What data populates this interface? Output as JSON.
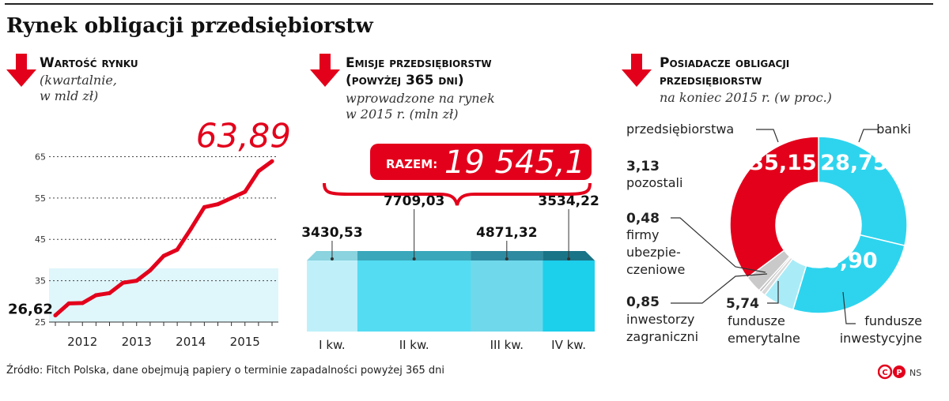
{
  "title": "Rynek obligacji przedsiębiorstw",
  "panels": {
    "market": {
      "title": "Wartość rynku",
      "subtitle_line1": "(kwartalnie,",
      "subtitle_line2": "w mld zł)",
      "start_label": "26,62",
      "end_label": "63,89"
    },
    "issues": {
      "title_line1": "Emisje przedsiębiorstw",
      "title_line2": "(powyżej 365 dni)",
      "subtitle_line1": "wprowadzone na rynek",
      "subtitle_line2": "w 2015 r. (mln zł)",
      "total_label": "RAZEM:",
      "total_value": "19 545,1"
    },
    "holders": {
      "title_line1": "Posiadacze obligacji",
      "title_line2": "przedsiębiorstw",
      "subtitle": "na koniec 2015 r. (w proc.)"
    }
  },
  "source": "Źródło: Fitch Polska, dane obejmują papiery o terminie zapadalności powyżej 365 dni",
  "brand": "NS",
  "colors": {
    "red": "#e3001b",
    "cyan": "#2ed4ee",
    "light_cyan": "#a9ecf7",
    "pale_cyan": "#dff6fb",
    "gray": "#c9c9c9",
    "dark": "#111111"
  },
  "chart_data": [
    {
      "type": "line",
      "title": "Wartość rynku",
      "x_tick_labels": [
        "2012",
        "2013",
        "2014",
        "2015"
      ],
      "y_ticks": [
        25,
        35,
        45,
        55,
        65
      ],
      "ylim": [
        25,
        67
      ],
      "grid": true,
      "series": [
        {
          "values": [
            26.62,
            29.5,
            29.6,
            31.5,
            32.0,
            34.5,
            35.0,
            37.5,
            41.0,
            42.5,
            47.5,
            52.8,
            53.5,
            55.0,
            56.5,
            61.5,
            63.89
          ]
        }
      ]
    },
    {
      "type": "bar",
      "title": "Emisje przedsiębiorstw",
      "categories": [
        "I kw.",
        "II kw.",
        "III kw.",
        "IV kw."
      ],
      "values": [
        3430.53,
        7709.03,
        4871.32,
        3534.22
      ],
      "value_labels": [
        "3430,53",
        "7709,03",
        "4871,32",
        "3534,22"
      ],
      "total": "19 545,1"
    },
    {
      "type": "pie",
      "title": "Posiadacze obligacji przedsiębiorstw",
      "slices": [
        {
          "name": "banki",
          "value": 28.75,
          "label": "28,75",
          "color": "#2ed4ee"
        },
        {
          "name": "fundusze inwestycyjne",
          "value": 25.9,
          "label": "25,90",
          "color": "#2ed4ee"
        },
        {
          "name": "fundusze emerytalne",
          "value": 5.74,
          "label": "5,74",
          "color": "#a9ecf7"
        },
        {
          "name": "inwestorzy zagraniczni",
          "value": 0.85,
          "label": "0,85",
          "color": "#d8d8d8"
        },
        {
          "name": "firmy ubezpieczeniowe",
          "value": 0.48,
          "label": "0,48",
          "color": "#bdbdbd"
        },
        {
          "name": "pozostali",
          "value": 3.13,
          "label": "3,13",
          "color": "#c9c9c9"
        },
        {
          "name": "przedsiębiorstwa",
          "value": 35.15,
          "label": "35,15",
          "color": "#e3001b"
        }
      ],
      "legend_labels": {
        "przedsiebiorstwa": "przedsiębiorstwa",
        "banki": "banki",
        "pozostali": "pozostali",
        "firmy_line1": "firmy",
        "firmy_line2": "ubezpie-",
        "firmy_line3": "czeniowe",
        "inwestorzy_line1": "inwestorzy",
        "inwestorzy_line2": "zagraniczni",
        "emerytalne_line1": "fundusze",
        "emerytalne_line2": "emerytalne",
        "inwestycyjne_line1": "fundusze",
        "inwestycyjne_line2": "inwestycyjne"
      }
    }
  ]
}
